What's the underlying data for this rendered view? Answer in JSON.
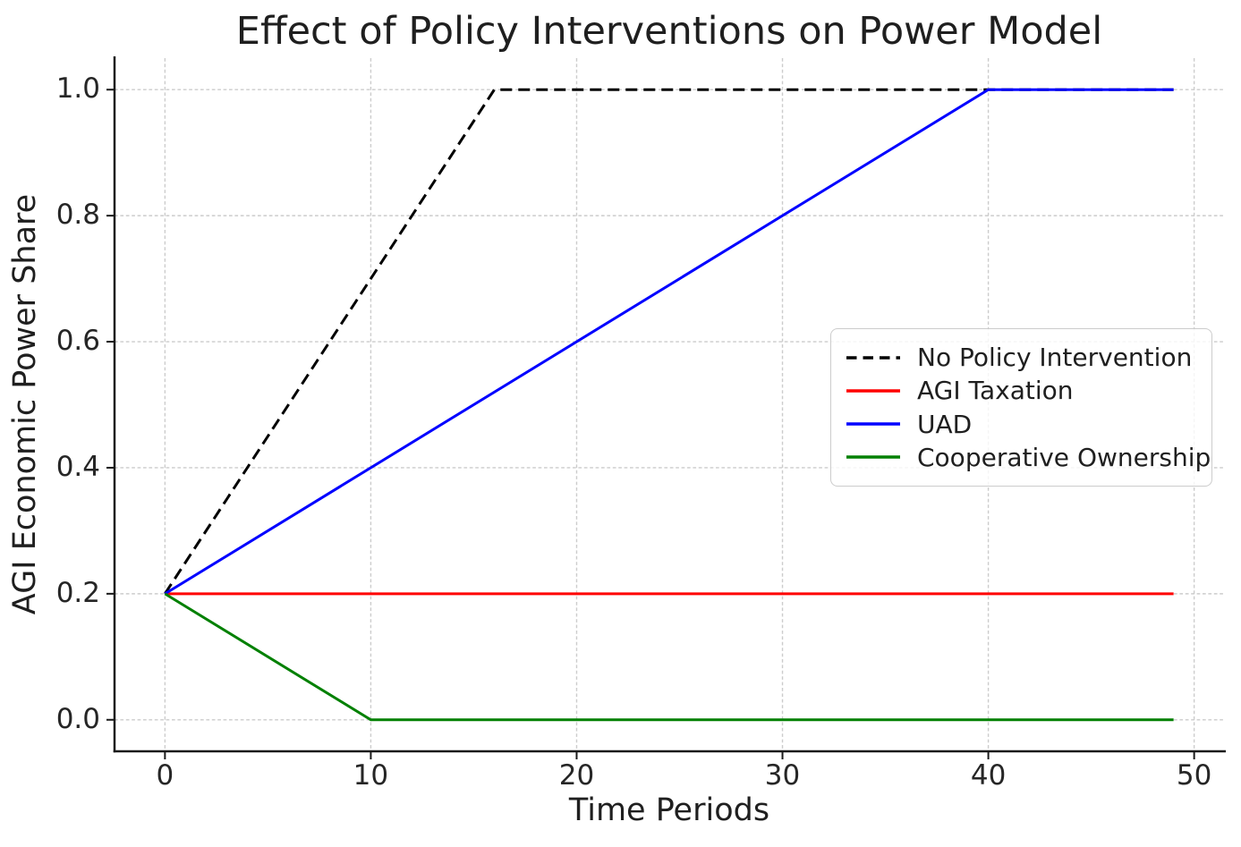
{
  "chart_data": {
    "type": "line",
    "title": "Effect of Policy Interventions on Power Model",
    "xlabel": "Time Periods",
    "ylabel": "AGI Economic Power Share",
    "xlim": [
      -2.45,
      51.45
    ],
    "ylim": [
      -0.05,
      1.05
    ],
    "xticks": [
      0,
      10,
      20,
      30,
      40,
      50
    ],
    "yticks": [
      0.0,
      0.2,
      0.4,
      0.6,
      0.8,
      1.0
    ],
    "xtick_labels": [
      "0",
      "10",
      "20",
      "30",
      "40",
      "50"
    ],
    "ytick_labels": [
      "0.0",
      "0.2",
      "0.4",
      "0.6",
      "0.8",
      "1.0"
    ],
    "grid": true,
    "grid_color": "#cccccc",
    "spine_color": "#1a1a1a",
    "text_color": "#1f1f1f",
    "legend_position": "center right",
    "x_range_shown": [
      0,
      49
    ],
    "series": [
      {
        "name": "No Policy Intervention",
        "color": "#000000",
        "style": "dashed",
        "points": [
          [
            0,
            0.2
          ],
          [
            16,
            1.0
          ],
          [
            49,
            1.0
          ]
        ]
      },
      {
        "name": "AGI Taxation",
        "color": "#ff0000",
        "style": "solid",
        "points": [
          [
            0,
            0.2
          ],
          [
            49,
            0.2
          ]
        ]
      },
      {
        "name": "UAD",
        "color": "#0000ff",
        "style": "solid",
        "points": [
          [
            0,
            0.2
          ],
          [
            40,
            1.0
          ],
          [
            49,
            1.0
          ]
        ]
      },
      {
        "name": "Cooperative Ownership",
        "color": "#008000",
        "style": "solid",
        "points": [
          [
            0,
            0.2
          ],
          [
            10,
            0.0
          ],
          [
            49,
            0.0
          ]
        ]
      }
    ]
  }
}
